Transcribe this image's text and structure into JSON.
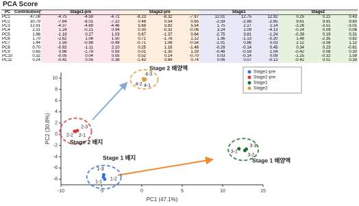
{
  "table": {
    "title": "PCA Score",
    "header": [
      "PC",
      "Contribution(%)"
    ],
    "groups": [
      "Stage1-pre",
      "Stage2-pre",
      "Stage1",
      "Stage2"
    ],
    "rows": [
      [
        "PC1",
        "47.08",
        "-4.75",
        "-4.59",
        "-4.71",
        "-8.23",
        "-8.32",
        "-7.97",
        "12.01",
        "12.75",
        "12.92",
        "0.25",
        "0.21",
        "0.43"
      ],
      [
        "PC2",
        "30.79",
        "-7.64",
        "-8.01",
        "-7.22",
        "0.48",
        "0.54",
        "0.65",
        "-2.59",
        "-2.88",
        "-2.65",
        "9.61",
        "9.91",
        "9.80"
      ],
      [
        "PC3",
        "12.91",
        "-4.37",
        "-4.69",
        "-4.46",
        "5.68",
        "5.82",
        "5.54",
        "1.75",
        "2.27",
        "2.14",
        "-3.26",
        "-3.51",
        "-3.01"
      ],
      [
        "PC4",
        "2.31",
        "1.24",
        "-0.21",
        "0.94",
        "0.30",
        "-0.32",
        "-0.06",
        "3.24",
        "1.09",
        "-4.13",
        "-0.24",
        "0.09",
        "0.06"
      ],
      [
        "PC5",
        "1.86",
        "-1.18",
        "0.27",
        "1.03",
        "0.67",
        "-1.37",
        "0.64",
        "-2.75",
        "3.81",
        "-1.24",
        "-0.39",
        "0.19",
        "0.31"
      ],
      [
        "PC6",
        "1.70",
        "-2.62",
        "1.06",
        "1.50",
        "0.71",
        "-1.76",
        "1.12",
        "1.36",
        "-1.13",
        "-0.20",
        "1.48",
        "-2.35",
        "0.82"
      ],
      [
        "PC7",
        "1.44",
        "1.59",
        "-0.98",
        "-0.49",
        "-0.71",
        "1.08",
        "-0.54",
        "-1.01",
        "0.86",
        "0.03",
        "2.12",
        "-3.08",
        "1.12"
      ],
      [
        "PC8",
        "0.70",
        "-0.92",
        "-1.11",
        "2.10",
        "0.25",
        "1.18",
        "-1.48",
        "-0.29",
        "-0.14",
        "0.45",
        "0.34",
        "0.23",
        "-0.61"
      ],
      [
        "PC9",
        "0.65",
        "0.96",
        "-1.79",
        "0.93",
        "0.01",
        "-1.30",
        "1.29",
        "-0.48",
        "-0.59",
        "1.04",
        "-0.42",
        "0.08",
        "0.30"
      ],
      [
        "PC10",
        "0.32",
        "-0.05",
        "0.04",
        "0.05",
        "0.52",
        "0.14",
        "-0.70",
        "0.03",
        "-0.14",
        "0.09",
        "-1.25",
        "-0.32",
        "1.59"
      ],
      [
        "PC11",
        "0.24",
        "-0.41",
        "0.05",
        "0.38",
        "-1.43",
        "0.69",
        "0.74",
        "0.06",
        "0.07",
        "-0.13",
        "-0.42",
        "0.01",
        "0.39"
      ]
    ]
  },
  "chart_data": {
    "type": "scatter",
    "x_label": "PC1 (47.1%)",
    "y_label": "PC2 (30.8%)",
    "xlim": [
      -10,
      15
    ],
    "xticks": [
      -10,
      -5,
      0,
      5,
      10,
      15
    ],
    "ylim": [
      -9,
      11
    ],
    "yticks": [
      -8,
      -6,
      -4,
      -2,
      0,
      2,
      4,
      6,
      8,
      10
    ],
    "series": [
      {
        "name": "Stage1-pre",
        "color": "#3a6fd8",
        "x": [
          -4.75,
          -4.59,
          -4.71
        ],
        "values": [
          -7.64,
          -8.01,
          -7.22
        ],
        "point_labels": [
          "1-1",
          "1-2",
          "1-3"
        ]
      },
      {
        "name": "Stage2-pre",
        "color": "#d23a3a",
        "x": [
          -8.23,
          -8.32,
          -7.97
        ],
        "values": [
          0.48,
          0.54,
          0.65
        ],
        "point_labels": [
          "2-1",
          "2-2",
          "2-3"
        ]
      },
      {
        "name": "Stage1",
        "color": "#1e6b2e",
        "x": [
          12.01,
          12.75,
          12.92
        ],
        "values": [
          -2.59,
          -2.88,
          -2.65
        ],
        "point_labels": [
          "3-1",
          "3-2",
          "3-3"
        ]
      },
      {
        "name": "Stage2",
        "color": "#d9a13a",
        "x": [
          0.25,
          0.21,
          0.43
        ],
        "values": [
          9.61,
          9.91,
          9.8
        ],
        "point_labels": [
          "4-1",
          "4-2",
          "4-3"
        ]
      }
    ],
    "annotations": [
      "Stage 2 배양액",
      "Stage 2 배지",
      "Stage 1 배양액",
      "Stage 1 배지"
    ]
  }
}
